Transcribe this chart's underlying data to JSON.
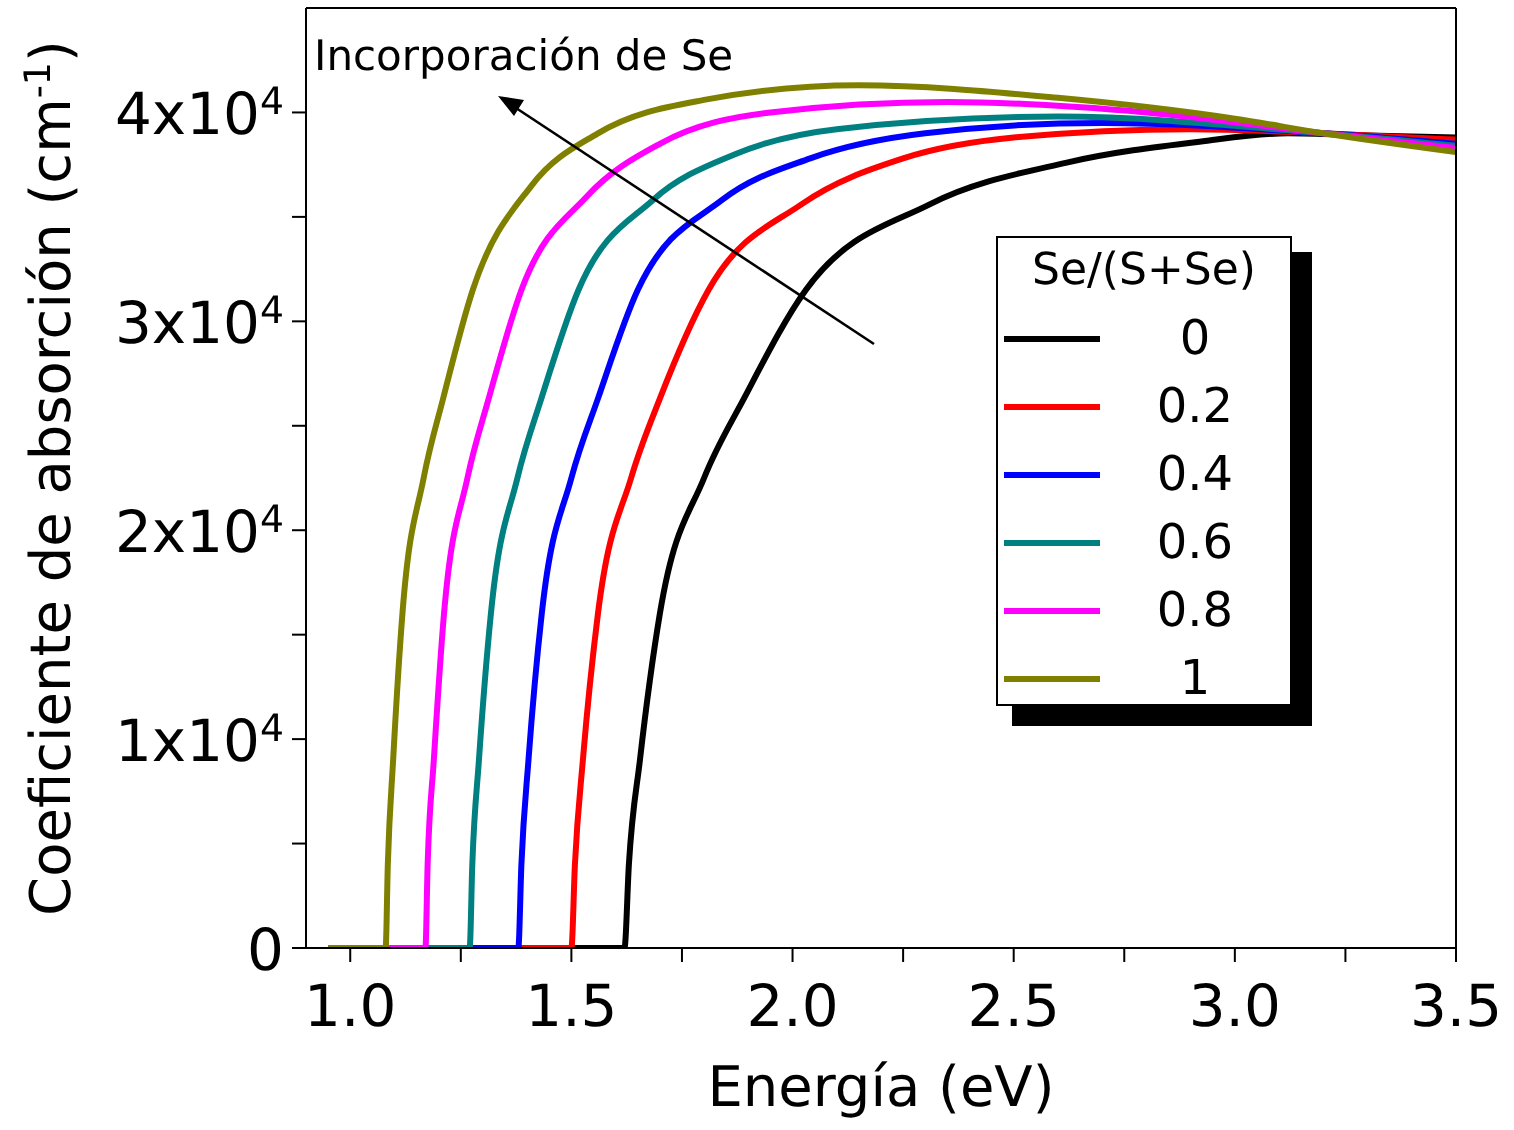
{
  "chart_data": {
    "type": "line",
    "xlabel": "Energía (eV)",
    "ylabel": "Coeficiente de absorción (cm$^{-1}$)",
    "legend_title": "Se/(S+Se)",
    "legend": "right",
    "marker": "none",
    "line_style": "solid",
    "annotations": [
      "Incorporación de Se"
    ],
    "xlim": [
      0.9,
      3.5
    ],
    "xticks": [
      {
        "value": 1,
        "label": "1.0"
      },
      {
        "value": 1.25,
        "label": null
      },
      1.5,
      {
        "value": 1.75,
        "label": null
      },
      {
        "value": 2,
        "label": "2.0"
      },
      {
        "value": 2.25,
        "label": null
      },
      2.5,
      {
        "value": 2.75,
        "label": null
      },
      {
        "value": 3,
        "label": "3.0"
      },
      {
        "value": 3.25,
        "label": null
      },
      3.5
    ],
    "ylim": [
      0,
      45000
    ],
    "yticks": [
      0,
      {
        "value": 5000,
        "label": null
      },
      {
        "value": 10000,
        "label": "1x10$^{4}$"
      },
      {
        "value": 15000,
        "label": null
      },
      {
        "value": 20000,
        "label": "2x10$^{4}$"
      },
      {
        "value": 25000,
        "label": null
      },
      {
        "value": 30000,
        "label": "3x10$^{4}$"
      },
      {
        "value": 35000,
        "label": null
      },
      {
        "value": 40000,
        "label": "4x10$^{4}$"
      }
    ],
    "series": [
      {
        "name": "0",
        "color": "#000000",
        "x": [
          0.95,
          1.62,
          1.63,
          1.655,
          1.7,
          1.8,
          1.89,
          2.03,
          2.31,
          2.62,
          2.92,
          3.12,
          3.3,
          3.5
        ],
        "values": [
          0,
          0,
          4000,
          9000,
          16000,
          22500,
          26300,
          31500,
          35600,
          37600,
          38600,
          39000,
          38900,
          38800
        ]
      },
      {
        "name": "0.2",
        "color": "#ff0000",
        "x": [
          0.95,
          1.5,
          1.508,
          1.526,
          1.56,
          1.635,
          1.7,
          1.81,
          2.02,
          2.25,
          2.5,
          2.9,
          3.2,
          3.5
        ],
        "values": [
          0,
          0,
          4000,
          9000,
          16000,
          22500,
          26300,
          31500,
          35600,
          37800,
          38800,
          39200,
          39000,
          38700
        ]
      },
      {
        "name": "0.4",
        "color": "#0000ff",
        "x": [
          0.95,
          1.38,
          1.387,
          1.403,
          1.433,
          1.5,
          1.56,
          1.65,
          1.84,
          2.04,
          2.3,
          2.7,
          3.2,
          3.5
        ],
        "values": [
          0,
          0,
          4000,
          9000,
          16000,
          22500,
          26300,
          31500,
          35800,
          37800,
          39000,
          39500,
          39000,
          38500
        ]
      },
      {
        "name": "0.6",
        "color": "#008080",
        "x": [
          0.95,
          1.27,
          1.276,
          1.291,
          1.318,
          1.378,
          1.432,
          1.516,
          1.684,
          1.87,
          2.1,
          2.6,
          3.2,
          3.5
        ],
        "values": [
          0,
          0,
          4000,
          9000,
          16000,
          22500,
          26300,
          31500,
          35800,
          38000,
          39200,
          39800,
          39000,
          38400
        ]
      },
      {
        "name": "0.8",
        "color": "#ff00ff",
        "x": [
          0.95,
          1.17,
          1.175,
          1.189,
          1.212,
          1.265,
          1.313,
          1.387,
          1.536,
          1.7,
          1.95,
          2.35,
          2.8,
          3.2,
          3.5
        ],
        "values": [
          0,
          0,
          4000,
          9000,
          16000,
          22500,
          26300,
          31500,
          36000,
          38500,
          40000,
          40500,
          40000,
          39000,
          38300
        ]
      },
      {
        "name": "1",
        "color": "#808000",
        "x": [
          0.95,
          1.08,
          1.085,
          1.097,
          1.118,
          1.166,
          1.21,
          1.277,
          1.41,
          1.56,
          1.8,
          2.15,
          2.6,
          3.0,
          3.2,
          3.5
        ],
        "values": [
          0,
          0,
          4000,
          9000,
          16000,
          22500,
          26300,
          31500,
          36500,
          39000,
          40600,
          41300,
          40700,
          39700,
          39000,
          38100
        ]
      }
    ]
  }
}
